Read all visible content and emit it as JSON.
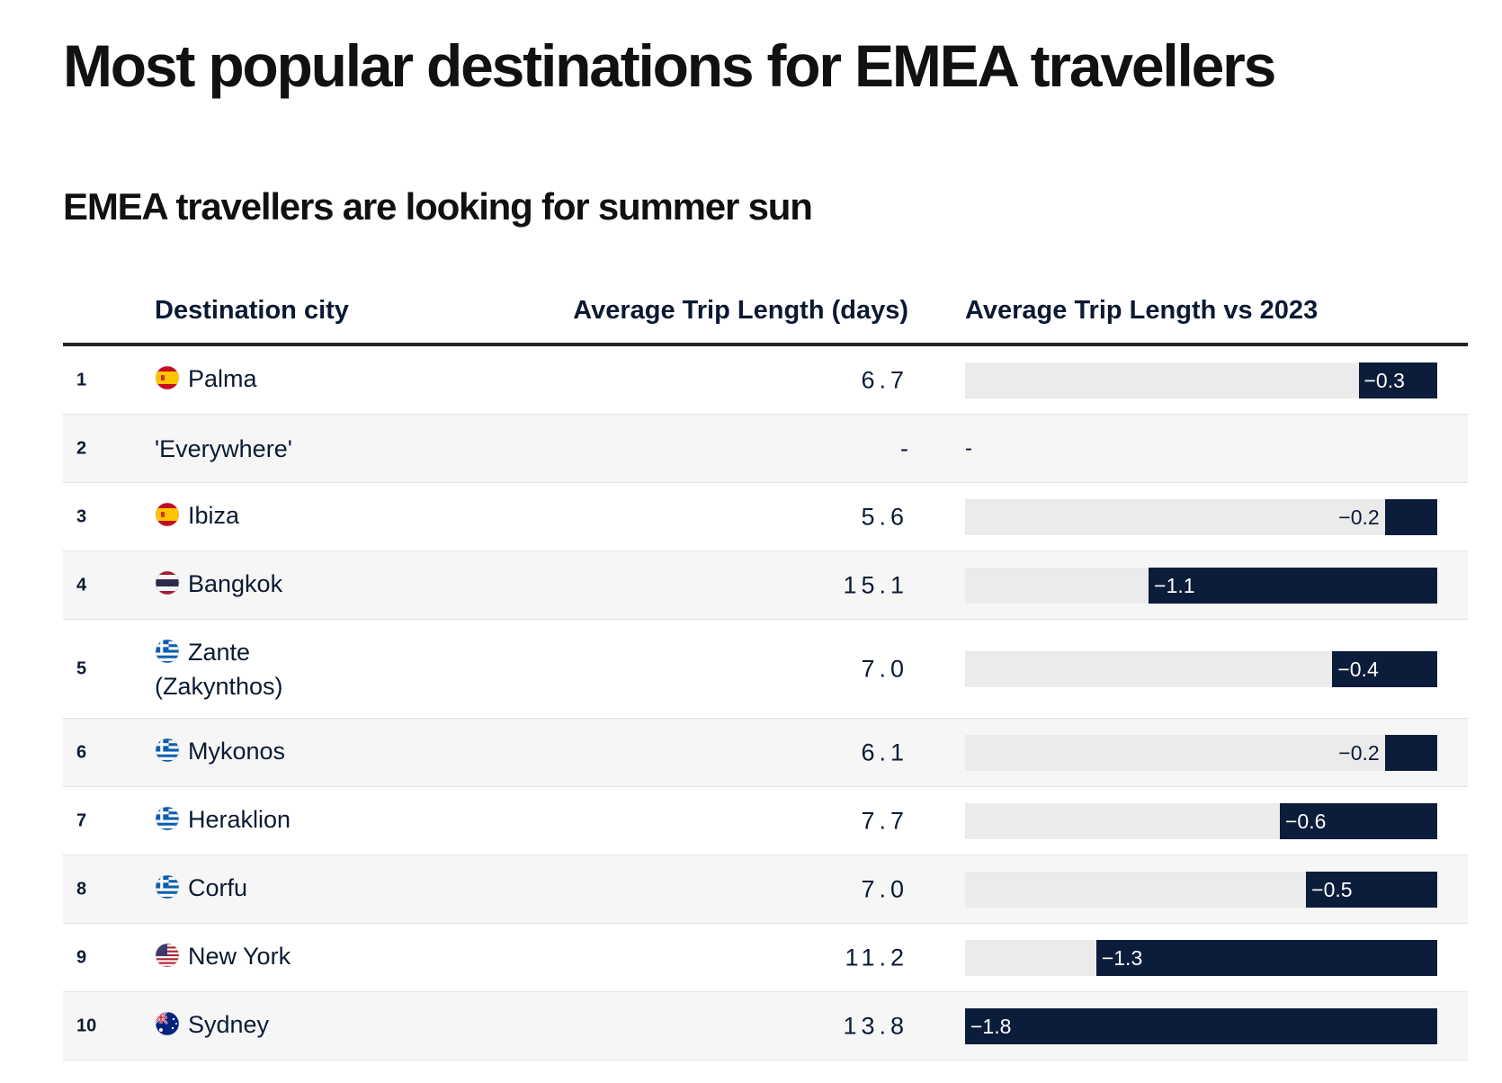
{
  "title": "Most popular destinations for EMEA travellers",
  "subtitle": "EMEA travellers are looking for summer sun",
  "columns": {
    "city": "Destination city",
    "length": "Average Trip Length (days)",
    "vs": "Average Trip Length vs 2023"
  },
  "colors": {
    "bar": "#0b1d3a",
    "track": "#ebebeb",
    "row_alt": "#f6f6f6",
    "text": "#0b1a33"
  },
  "chart_data": {
    "type": "table",
    "columns": [
      "Destination city",
      "Average Trip Length (days)",
      "Average Trip Length vs 2023"
    ],
    "vs_range": [
      -1.8,
      0
    ],
    "rows": [
      {
        "rank": "1",
        "city": "Palma",
        "flag": "spain-flag-icon",
        "length": "6.7",
        "vs": -0.3,
        "vs_label": "−0.3"
      },
      {
        "rank": "2",
        "city": "'Everywhere'",
        "flag": "",
        "length": "-",
        "vs": null,
        "vs_label": "-"
      },
      {
        "rank": "3",
        "city": "Ibiza",
        "flag": "spain-flag-icon",
        "length": "5.6",
        "vs": -0.2,
        "vs_label": "−0.2"
      },
      {
        "rank": "4",
        "city": "Bangkok",
        "flag": "thailand-flag-icon",
        "length": "15.1",
        "vs": -1.1,
        "vs_label": "−1.1"
      },
      {
        "rank": "5",
        "city": "Zante (Zakynthos)",
        "flag": "greece-flag-icon",
        "length": "7.0",
        "vs": -0.4,
        "vs_label": "−0.4"
      },
      {
        "rank": "6",
        "city": "Mykonos",
        "flag": "greece-flag-icon",
        "length": "6.1",
        "vs": -0.2,
        "vs_label": "−0.2"
      },
      {
        "rank": "7",
        "city": "Heraklion",
        "flag": "greece-flag-icon",
        "length": "7.7",
        "vs": -0.6,
        "vs_label": "−0.6"
      },
      {
        "rank": "8",
        "city": "Corfu",
        "flag": "greece-flag-icon",
        "length": "7.0",
        "vs": -0.5,
        "vs_label": "−0.5"
      },
      {
        "rank": "9",
        "city": "New York",
        "flag": "usa-flag-icon",
        "length": "11.2",
        "vs": -1.3,
        "vs_label": "−1.3"
      },
      {
        "rank": "10",
        "city": "Sydney",
        "flag": "australia-flag-icon",
        "length": "13.8",
        "vs": -1.8,
        "vs_label": "−1.8"
      }
    ]
  }
}
